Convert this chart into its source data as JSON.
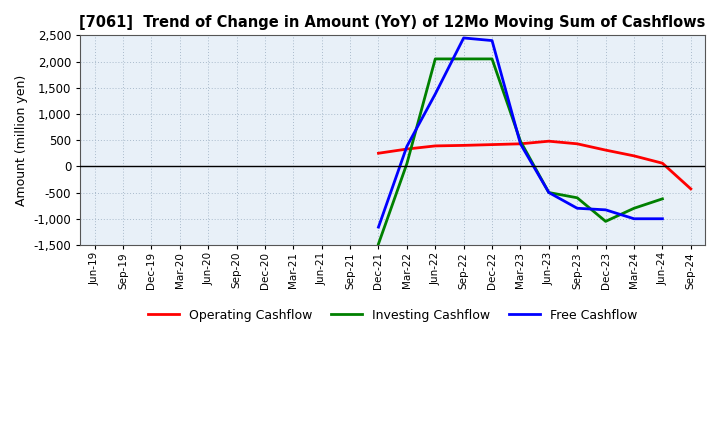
{
  "title": "[7061]  Trend of Change in Amount (YoY) of 12Mo Moving Sum of Cashflows",
  "ylabel": "Amount (million yen)",
  "background_color": "#ffffff",
  "plot_background": "#e8f0f8",
  "grid_color": "#aabbcc",
  "ylim": [
    -1500,
    2500
  ],
  "yticks": [
    -1500,
    -1000,
    -500,
    0,
    500,
    1000,
    1500,
    2000,
    2500
  ],
  "x_labels": [
    "Jun-19",
    "Sep-19",
    "Dec-19",
    "Mar-20",
    "Jun-20",
    "Sep-20",
    "Dec-20",
    "Mar-21",
    "Jun-21",
    "Sep-21",
    "Dec-21",
    "Mar-22",
    "Jun-22",
    "Sep-22",
    "Dec-22",
    "Mar-23",
    "Jun-23",
    "Sep-23",
    "Dec-23",
    "Mar-24",
    "Jun-24",
    "Sep-24"
  ],
  "operating": [
    null,
    null,
    null,
    null,
    null,
    null,
    null,
    null,
    null,
    null,
    250,
    330,
    390,
    400,
    415,
    430,
    480,
    430,
    310,
    200,
    60,
    -430
  ],
  "investing": [
    null,
    null,
    null,
    null,
    null,
    null,
    null,
    null,
    null,
    null,
    -1480,
    50,
    2050,
    2050,
    2050,
    480,
    -500,
    -600,
    -1050,
    -800,
    -620,
    null
  ],
  "free": [
    null,
    null,
    null,
    null,
    null,
    null,
    null,
    null,
    null,
    null,
    -1160,
    380,
    1380,
    2450,
    2400,
    430,
    -500,
    -800,
    -830,
    -1000,
    -1000,
    null
  ],
  "operating_color": "#ff0000",
  "investing_color": "#008000",
  "free_color": "#0000ff",
  "line_width": 2.0,
  "legend_labels": [
    "Operating Cashflow",
    "Investing Cashflow",
    "Free Cashflow"
  ]
}
